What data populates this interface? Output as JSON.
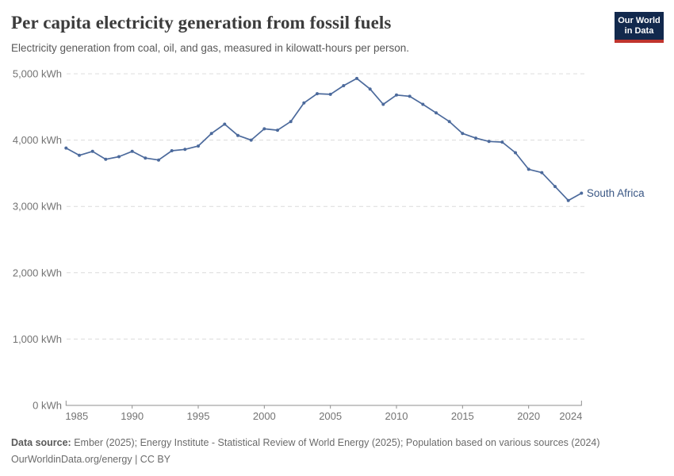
{
  "header": {
    "title": "Per capita electricity generation from fossil fuels",
    "subtitle": "Electricity generation from coal, oil, and gas, measured in kilowatt-hours per person.",
    "logo": {
      "line1": "Our World",
      "line2": "in Data",
      "bg_color": "#12294d",
      "accent_color": "#c0342e"
    }
  },
  "chart_data": {
    "type": "line",
    "title": "Per capita electricity generation from fossil fuels",
    "xlabel": "",
    "ylabel": "kWh",
    "xlim": [
      1985,
      2024
    ],
    "ylim": [
      0,
      5000
    ],
    "x_ticks": [
      1985,
      1990,
      1995,
      2000,
      2005,
      2010,
      2015,
      2020,
      2024
    ],
    "y_ticks": [
      0,
      1000,
      2000,
      3000,
      4000,
      5000
    ],
    "y_tick_suffix": " kWh",
    "grid": "horizontal-dashed",
    "legend_position": "end-of-line-label",
    "series": [
      {
        "name": "South Africa",
        "color": "#4c6a9c",
        "label_color": "#3a5784",
        "x": [
          1985,
          1986,
          1987,
          1988,
          1989,
          1990,
          1991,
          1992,
          1993,
          1994,
          1995,
          1996,
          1997,
          1998,
          1999,
          2000,
          2001,
          2002,
          2003,
          2004,
          2005,
          2006,
          2007,
          2008,
          2009,
          2010,
          2011,
          2012,
          2013,
          2014,
          2015,
          2016,
          2017,
          2018,
          2019,
          2020,
          2021,
          2022,
          2023,
          2024
        ],
        "values": [
          3880,
          3770,
          3830,
          3710,
          3750,
          3830,
          3730,
          3700,
          3840,
          3860,
          3910,
          4100,
          4240,
          4070,
          4000,
          4170,
          4150,
          4280,
          4560,
          4700,
          4690,
          4820,
          4930,
          4770,
          4540,
          4680,
          4660,
          4540,
          4410,
          4280,
          4100,
          4030,
          3980,
          3970,
          3810,
          3560,
          3510,
          3300,
          3090,
          3200
        ]
      }
    ]
  },
  "styles": {
    "grid_color": "#dcdcdc",
    "axis_color": "#8f8f8f",
    "tick_label_color": "#737373"
  },
  "footer": {
    "source_label": "Data source:",
    "source_text": "Ember (2025); Energy Institute - Statistical Review of World Energy (2025); Population based on various sources (2024)",
    "license": "OurWorldinData.org/energy | CC BY"
  }
}
